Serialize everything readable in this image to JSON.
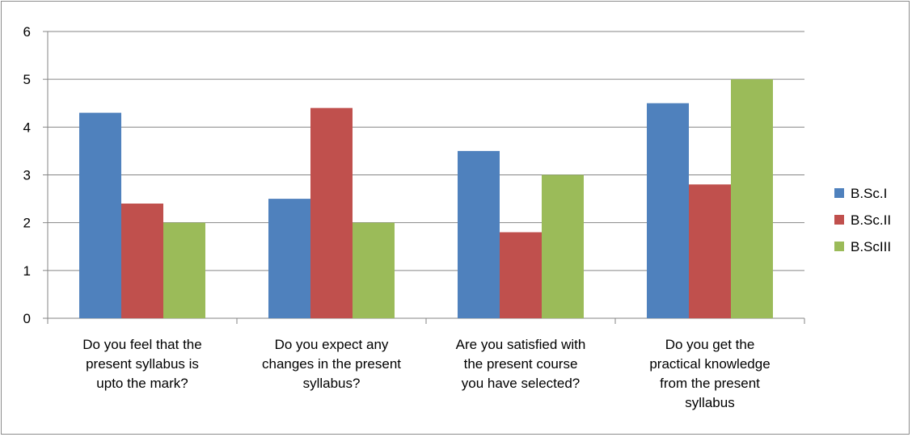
{
  "chart_data": {
    "type": "bar",
    "categories": [
      [
        "Do you feel that the",
        "present syllabus is",
        "upto the mark?"
      ],
      [
        "Do you expect any",
        "changes in the present",
        "syllabus?"
      ],
      [
        "Are you satisfied with",
        "the present course",
        "you have selected?"
      ],
      [
        "Do you get the",
        "practical knowledge",
        "from the present",
        "syllabus"
      ]
    ],
    "series": [
      {
        "name": "B.Sc.I",
        "color": "#4F81BD",
        "values": [
          4.3,
          2.5,
          3.5,
          4.5
        ]
      },
      {
        "name": "B.Sc.II",
        "color": "#C0504D",
        "values": [
          2.4,
          4.4,
          1.8,
          2.8
        ]
      },
      {
        "name": "B.ScIII",
        "color": "#9BBB59",
        "values": [
          2.0,
          2.0,
          3.0,
          5.0
        ]
      }
    ],
    "ylim": [
      0,
      6
    ],
    "yticks": [
      "0",
      "1",
      "2",
      "3",
      "4",
      "5",
      "6"
    ],
    "grid": true,
    "legend": "right"
  }
}
